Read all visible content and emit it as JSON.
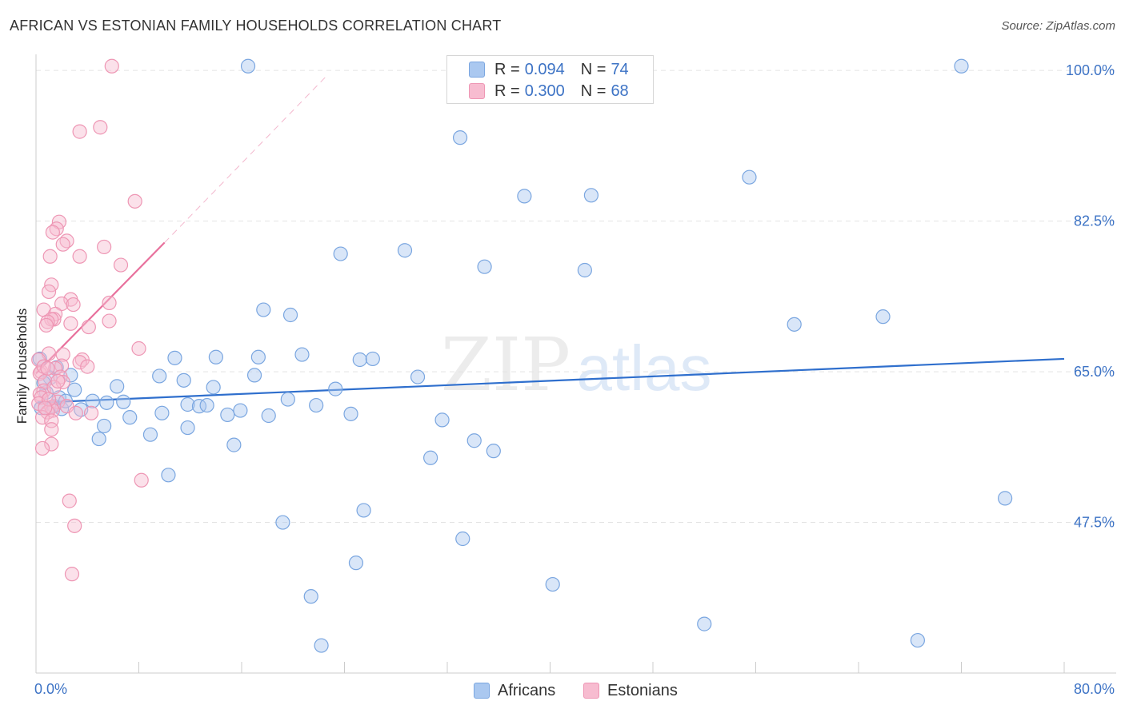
{
  "title": "AFRICAN VS ESTONIAN FAMILY HOUSEHOLDS CORRELATION CHART",
  "source": "Source: ZipAtlas.com",
  "watermark": {
    "zip": "ZIP",
    "atlas": "atlas"
  },
  "legend": {
    "rows": [
      {
        "r_label": "R =",
        "r_value": "0.094",
        "n_label": "N =",
        "n_value": "74"
      },
      {
        "r_label": "R =",
        "r_value": "0.300",
        "n_label": "N =",
        "n_value": "68"
      }
    ]
  },
  "bottom_legend": {
    "africans": "Africans",
    "estonians": "Estonians"
  },
  "colors": {
    "africans_fill": "#aac8f0",
    "africans_stroke": "#7aa6e0",
    "africans_line": "#2f6fcd",
    "estonians_fill": "#f7bcd0",
    "estonians_stroke": "#ee96b4",
    "estonians_line": "#e8709c",
    "tick_text": "#3d73c5",
    "grid": "#e3e3e3"
  },
  "chart_data": {
    "type": "scatter",
    "title": "AFRICAN VS ESTONIAN FAMILY HOUSEHOLDS CORRELATION CHART",
    "xlabel": "",
    "ylabel": "Family Households",
    "xlim": [
      0,
      80
    ],
    "ylim": [
      30,
      101.5
    ],
    "x_tick_labels": [
      "0.0%",
      "80.0%"
    ],
    "y_ticks": [
      47.5,
      65.0,
      82.5,
      100.0
    ],
    "y_tick_labels": [
      "47.5%",
      "65.0%",
      "82.5%",
      "100.0%"
    ],
    "grid": true,
    "legend_position": "top-center",
    "series": [
      {
        "name": "Africans",
        "r": 0.094,
        "n": 74,
        "trend": {
          "x": [
            0,
            80
          ],
          "y": [
            61.4,
            66.5
          ]
        },
        "points": [
          [
            16.5,
            100.5
          ],
          [
            72.0,
            100.5
          ],
          [
            33.0,
            92.2
          ],
          [
            38.0,
            85.4
          ],
          [
            43.2,
            85.5
          ],
          [
            55.5,
            87.6
          ],
          [
            23.7,
            78.7
          ],
          [
            28.7,
            79.1
          ],
          [
            34.9,
            77.2
          ],
          [
            42.7,
            76.8
          ],
          [
            17.7,
            72.2
          ],
          [
            19.8,
            71.6
          ],
          [
            59.0,
            70.5
          ],
          [
            65.9,
            71.4
          ],
          [
            10.8,
            66.6
          ],
          [
            14.0,
            66.7
          ],
          [
            17.3,
            66.7
          ],
          [
            20.7,
            67.0
          ],
          [
            25.2,
            66.4
          ],
          [
            26.2,
            66.5
          ],
          [
            29.7,
            64.4
          ],
          [
            9.6,
            64.5
          ],
          [
            11.5,
            64.0
          ],
          [
            17.0,
            64.6
          ],
          [
            1.1,
            64.3
          ],
          [
            3.0,
            62.9
          ],
          [
            6.3,
            63.3
          ],
          [
            13.8,
            63.2
          ],
          [
            23.3,
            63.0
          ],
          [
            4.4,
            61.6
          ],
          [
            5.5,
            61.4
          ],
          [
            6.8,
            61.5
          ],
          [
            11.8,
            61.2
          ],
          [
            12.7,
            61.0
          ],
          [
            13.3,
            61.1
          ],
          [
            19.6,
            61.8
          ],
          [
            21.8,
            61.1
          ],
          [
            0.4,
            60.8
          ],
          [
            1.4,
            61.0
          ],
          [
            2.0,
            60.7
          ],
          [
            7.3,
            59.7
          ],
          [
            9.8,
            60.2
          ],
          [
            14.9,
            60.0
          ],
          [
            15.9,
            60.5
          ],
          [
            18.1,
            59.9
          ],
          [
            24.5,
            60.1
          ],
          [
            31.6,
            59.4
          ],
          [
            5.3,
            58.7
          ],
          [
            11.8,
            58.5
          ],
          [
            8.9,
            57.7
          ],
          [
            4.9,
            57.2
          ],
          [
            15.4,
            56.5
          ],
          [
            34.1,
            57.0
          ],
          [
            35.6,
            55.8
          ],
          [
            30.7,
            55.0
          ],
          [
            10.3,
            53.0
          ],
          [
            75.4,
            50.3
          ],
          [
            25.5,
            48.9
          ],
          [
            19.2,
            47.5
          ],
          [
            33.2,
            45.6
          ],
          [
            24.9,
            42.8
          ],
          [
            40.2,
            40.3
          ],
          [
            21.4,
            38.9
          ],
          [
            52.0,
            35.7
          ],
          [
            68.6,
            33.8
          ],
          [
            22.2,
            33.2
          ],
          [
            0.3,
            66.5
          ],
          [
            2.7,
            64.6
          ],
          [
            1.8,
            62.0
          ],
          [
            3.5,
            60.6
          ],
          [
            0.8,
            62.6
          ],
          [
            2.3,
            61.6
          ],
          [
            1.6,
            65.5
          ],
          [
            0.6,
            63.7
          ]
        ]
      },
      {
        "name": "Estonians",
        "r": 0.3,
        "n": 68,
        "trend": {
          "x": [
            0,
            10
          ],
          "y": [
            64.8,
            80.0
          ]
        },
        "trend_extrapolated": {
          "x": [
            10,
            22.5
          ],
          "y": [
            80.0,
            99.2
          ]
        },
        "points": [
          [
            5.9,
            100.5
          ],
          [
            3.4,
            92.9
          ],
          [
            5.0,
            93.4
          ],
          [
            7.7,
            84.8
          ],
          [
            1.8,
            82.4
          ],
          [
            1.6,
            81.6
          ],
          [
            1.3,
            81.2
          ],
          [
            2.4,
            80.2
          ],
          [
            2.1,
            79.8
          ],
          [
            5.3,
            79.5
          ],
          [
            3.4,
            78.4
          ],
          [
            1.1,
            78.4
          ],
          [
            6.6,
            77.4
          ],
          [
            1.2,
            75.1
          ],
          [
            1.0,
            74.3
          ],
          [
            2.7,
            73.4
          ],
          [
            5.7,
            73.0
          ],
          [
            2.0,
            72.9
          ],
          [
            2.9,
            72.8
          ],
          [
            0.6,
            72.2
          ],
          [
            1.5,
            71.7
          ],
          [
            1.4,
            71.1
          ],
          [
            1.2,
            71.1
          ],
          [
            5.7,
            70.9
          ],
          [
            0.9,
            70.8
          ],
          [
            0.8,
            70.4
          ],
          [
            2.7,
            70.6
          ],
          [
            4.1,
            70.2
          ],
          [
            8.0,
            67.7
          ],
          [
            1.0,
            67.1
          ],
          [
            2.1,
            67.0
          ],
          [
            0.2,
            66.4
          ],
          [
            3.6,
            66.4
          ],
          [
            3.4,
            66.1
          ],
          [
            2.0,
            65.7
          ],
          [
            4.0,
            65.6
          ],
          [
            1.5,
            65.4
          ],
          [
            0.4,
            65.0
          ],
          [
            0.3,
            64.8
          ],
          [
            1.9,
            64.4
          ],
          [
            0.7,
            63.9
          ],
          [
            2.1,
            63.8
          ],
          [
            0.6,
            62.8
          ],
          [
            0.3,
            62.4
          ],
          [
            0.4,
            62.0
          ],
          [
            1.7,
            61.5
          ],
          [
            0.2,
            61.3
          ],
          [
            2.4,
            61.0
          ],
          [
            1.2,
            60.9
          ],
          [
            1.3,
            60.5
          ],
          [
            0.9,
            60.3
          ],
          [
            3.1,
            60.2
          ],
          [
            4.3,
            60.2
          ],
          [
            0.5,
            59.7
          ],
          [
            1.2,
            59.3
          ],
          [
            1.2,
            58.3
          ],
          [
            1.2,
            56.6
          ],
          [
            0.5,
            56.1
          ],
          [
            8.2,
            52.4
          ],
          [
            2.6,
            50.0
          ],
          [
            3.0,
            47.1
          ],
          [
            2.8,
            41.5
          ],
          [
            0.6,
            65.6
          ],
          [
            1.0,
            61.8
          ],
          [
            1.4,
            63.2
          ],
          [
            0.7,
            60.8
          ],
          [
            0.9,
            65.4
          ],
          [
            1.7,
            63.9
          ]
        ]
      }
    ]
  }
}
